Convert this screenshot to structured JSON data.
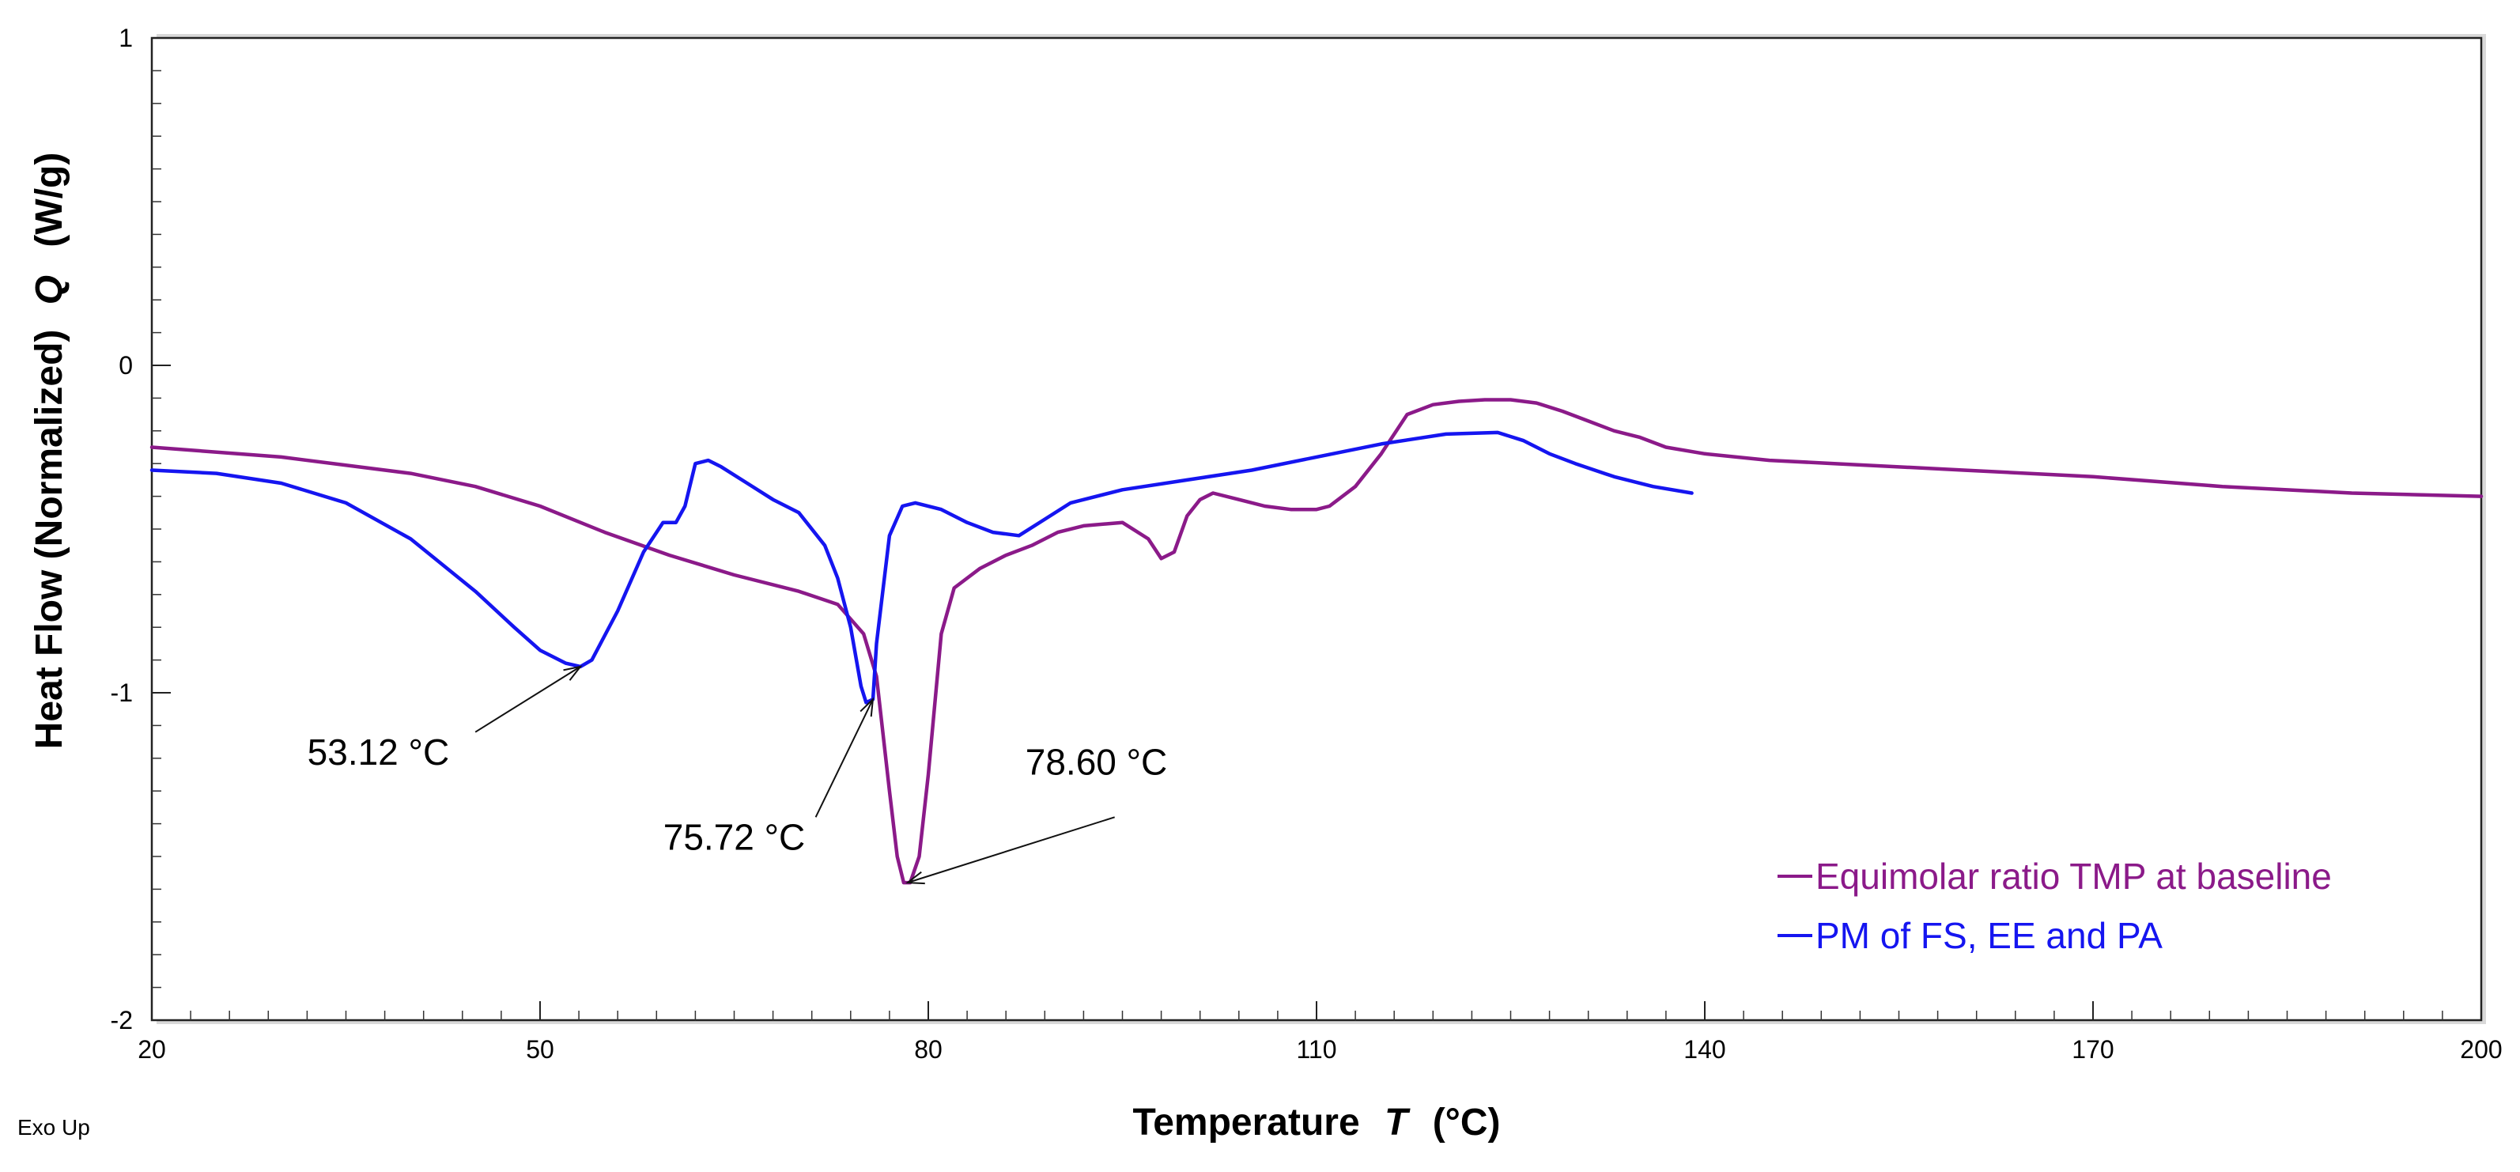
{
  "chart_data": {
    "type": "line",
    "xlabel": "Temperature",
    "xlabel_var": "T",
    "xlabel_unit": "(°C)",
    "ylabel": "Heat Flow (Normalized)",
    "ylabel_var": "Q",
    "ylabel_unit": "(W/g)",
    "xlim": [
      20,
      200
    ],
    "ylim": [
      -2,
      1
    ],
    "xticks": [
      20,
      50,
      80,
      110,
      140,
      170,
      200
    ],
    "yticks": [
      1,
      0,
      -1,
      -2
    ],
    "x_minor_step": 3,
    "y_minor_step": 0.1,
    "corner_note": "Exo Up",
    "legend_position": "bottom-right",
    "series": [
      {
        "name": "Equimolar ratio TMP at baseline",
        "color": "#8B1A89",
        "points": [
          [
            20,
            -0.25
          ],
          [
            30,
            -0.28
          ],
          [
            40,
            -0.33
          ],
          [
            45,
            -0.37
          ],
          [
            50,
            -0.43
          ],
          [
            55,
            -0.51
          ],
          [
            60,
            -0.58
          ],
          [
            65,
            -0.64
          ],
          [
            70,
            -0.69
          ],
          [
            73,
            -0.73
          ],
          [
            75,
            -0.82
          ],
          [
            76,
            -0.95
          ],
          [
            77,
            -1.3
          ],
          [
            77.6,
            -1.5
          ],
          [
            78.1,
            -1.58
          ],
          [
            78.6,
            -1.58
          ],
          [
            79.3,
            -1.5
          ],
          [
            80,
            -1.25
          ],
          [
            81,
            -0.82
          ],
          [
            82,
            -0.68
          ],
          [
            84,
            -0.62
          ],
          [
            86,
            -0.58
          ],
          [
            88,
            -0.55
          ],
          [
            90,
            -0.51
          ],
          [
            92,
            -0.49
          ],
          [
            95,
            -0.48
          ],
          [
            97,
            -0.53
          ],
          [
            98,
            -0.59
          ],
          [
            99,
            -0.57
          ],
          [
            100,
            -0.46
          ],
          [
            101,
            -0.41
          ],
          [
            102,
            -0.39
          ],
          [
            104,
            -0.41
          ],
          [
            106,
            -0.43
          ],
          [
            108,
            -0.44
          ],
          [
            110,
            -0.44
          ],
          [
            111,
            -0.43
          ],
          [
            113,
            -0.37
          ],
          [
            115,
            -0.27
          ],
          [
            117,
            -0.15
          ],
          [
            119,
            -0.12
          ],
          [
            121,
            -0.11
          ],
          [
            123,
            -0.105
          ],
          [
            125,
            -0.105
          ],
          [
            127,
            -0.115
          ],
          [
            129,
            -0.14
          ],
          [
            131,
            -0.17
          ],
          [
            133,
            -0.2
          ],
          [
            135,
            -0.22
          ],
          [
            137,
            -0.25
          ],
          [
            140,
            -0.27
          ],
          [
            145,
            -0.29
          ],
          [
            150,
            -0.3
          ],
          [
            160,
            -0.32
          ],
          [
            170,
            -0.34
          ],
          [
            180,
            -0.37
          ],
          [
            190,
            -0.39
          ],
          [
            200,
            -0.4
          ]
        ]
      },
      {
        "name": "PM of FS, EE and PA",
        "color": "#1515F0",
        "points": [
          [
            20,
            -0.32
          ],
          [
            25,
            -0.33
          ],
          [
            30,
            -0.36
          ],
          [
            35,
            -0.42
          ],
          [
            40,
            -0.53
          ],
          [
            45,
            -0.69
          ],
          [
            48,
            -0.8
          ],
          [
            50,
            -0.87
          ],
          [
            52,
            -0.91
          ],
          [
            53.12,
            -0.92
          ],
          [
            54,
            -0.9
          ],
          [
            56,
            -0.75
          ],
          [
            58,
            -0.57
          ],
          [
            59.5,
            -0.48
          ],
          [
            60.5,
            -0.48
          ],
          [
            61.2,
            -0.43
          ],
          [
            62,
            -0.3
          ],
          [
            63,
            -0.29
          ],
          [
            64,
            -0.31
          ],
          [
            66,
            -0.36
          ],
          [
            68,
            -0.41
          ],
          [
            70,
            -0.45
          ],
          [
            72,
            -0.55
          ],
          [
            73,
            -0.65
          ],
          [
            74,
            -0.8
          ],
          [
            74.8,
            -0.98
          ],
          [
            75.2,
            -1.03
          ],
          [
            75.72,
            -1.02
          ],
          [
            76,
            -0.85
          ],
          [
            77,
            -0.52
          ],
          [
            78,
            -0.43
          ],
          [
            79,
            -0.42
          ],
          [
            81,
            -0.44
          ],
          [
            83,
            -0.48
          ],
          [
            85,
            -0.51
          ],
          [
            87,
            -0.52
          ],
          [
            89,
            -0.47
          ],
          [
            91,
            -0.42
          ],
          [
            95,
            -0.38
          ],
          [
            100,
            -0.35
          ],
          [
            105,
            -0.32
          ],
          [
            110,
            -0.28
          ],
          [
            115,
            -0.24
          ],
          [
            120,
            -0.21
          ],
          [
            124,
            -0.205
          ],
          [
            126,
            -0.23
          ],
          [
            128,
            -0.27
          ],
          [
            130,
            -0.3
          ],
          [
            133,
            -0.34
          ],
          [
            136,
            -0.37
          ],
          [
            139,
            -0.39
          ]
        ]
      }
    ],
    "annotations": [
      {
        "label": "53.12 °C",
        "point": [
          53.12,
          -0.92
        ],
        "text_at": [
          37.5,
          -1.22
        ],
        "tail_at": [
          45,
          -1.12
        ],
        "anchor": "end"
      },
      {
        "label": "75.72 °C",
        "point": [
          75.72,
          -1.02
        ],
        "text_at": [
          65,
          -1.48
        ],
        "tail_at": [
          71.3,
          -1.38
        ],
        "anchor": "end"
      },
      {
        "label": "78.60 °C",
        "point": [
          78.4,
          -1.58
        ],
        "text_at": [
          87.5,
          -1.25
        ],
        "tail_at": [
          94.4,
          -1.38
        ],
        "anchor": "start"
      }
    ]
  }
}
